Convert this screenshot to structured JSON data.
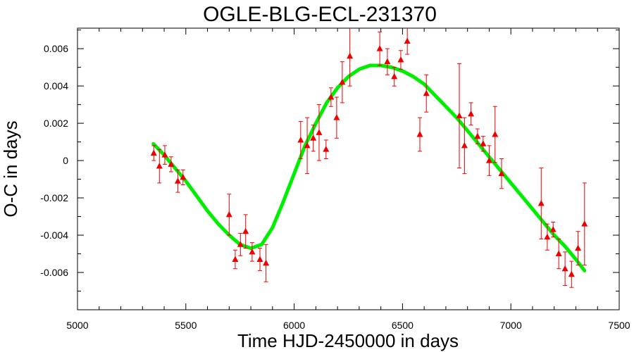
{
  "chart_data": {
    "type": "scatter",
    "title": "OGLE-BLG-ECL-231370",
    "xlabel": "Time HJD-2450000 in days",
    "ylabel": "O-C in days",
    "xlim": [
      5000,
      7500
    ],
    "ylim": [
      -0.008,
      0.0071
    ],
    "xticks": [
      5000,
      5500,
      6000,
      6500,
      7000,
      7500
    ],
    "yticks": [
      -0.006,
      -0.004,
      -0.002,
      0,
      0.002,
      0.004,
      0.006
    ],
    "ytick_labels": [
      "-0.006",
      "-0.004",
      "-0.002",
      "0",
      "0.002",
      "0.004",
      "0.006"
    ],
    "grid": false,
    "colors": {
      "points": "#ee0000",
      "fit": "#00ee00"
    },
    "series": [
      {
        "kind": "points_with_errorbars",
        "marker": "triangle",
        "x": [
          5352,
          5378,
          5403,
          5432,
          5463,
          5487,
          5700,
          5728,
          5752,
          5776,
          5806,
          5842,
          5870,
          6030,
          6060,
          6088,
          6115,
          6147,
          6170,
          6196,
          6222,
          6257,
          6395,
          6430,
          6462,
          6492,
          6522,
          6580,
          6610,
          6762,
          6786,
          6816,
          6846,
          6872,
          6900,
          6927,
          6957,
          7140,
          7168,
          7195,
          7221,
          7250,
          7280,
          7310,
          7340
        ],
        "y": [
          0.0004,
          -0.0003,
          0.0003,
          -0.0002,
          -0.0011,
          -0.0009,
          -0.0029,
          -0.0053,
          -0.0045,
          -0.0038,
          -0.0049,
          -0.0053,
          -0.0055,
          0.0011,
          0.0008,
          0.0012,
          0.0015,
          0.0006,
          0.0034,
          0.0023,
          0.0042,
          0.0056,
          0.006,
          0.0053,
          0.0045,
          0.0054,
          0.0064,
          0.0014,
          0.0036,
          0.0024,
          0.0008,
          0.0025,
          0.0013,
          0.0009,
          0.0,
          0.0014,
          -0.0007,
          -0.0023,
          -0.0041,
          -0.0037,
          -0.005,
          -0.0058,
          -0.0061,
          -0.0047,
          -0.0034
        ],
        "err": [
          0.0004,
          0.0009,
          0.0005,
          0.0004,
          0.0006,
          0.0004,
          0.0011,
          0.0005,
          0.0006,
          0.0009,
          0.0005,
          0.0006,
          0.001,
          0.001,
          0.0015,
          0.0007,
          0.0015,
          0.0005,
          0.0005,
          0.0011,
          0.0011,
          0.0016,
          0.0009,
          0.0007,
          0.0005,
          0.0005,
          0.0007,
          0.0009,
          0.001,
          0.0028,
          0.0015,
          0.0006,
          0.0004,
          0.0004,
          0.0008,
          0.0015,
          0.0008,
          0.0019,
          0.0007,
          0.0004,
          0.0008,
          0.0009,
          0.0007,
          0.0009,
          0.0022
        ]
      },
      {
        "kind": "fit_curve",
        "x": [
          5350,
          5400,
          5450,
          5500,
          5550,
          5600,
          5650,
          5700,
          5750,
          5800,
          5850,
          5900,
          5950,
          6000,
          6050,
          6100,
          6150,
          6200,
          6250,
          6300,
          6350,
          6400,
          6450,
          6500,
          6550,
          6600,
          6650,
          6700,
          6750,
          6800,
          6850,
          6900,
          6950,
          7000,
          7050,
          7100,
          7150,
          7200,
          7250,
          7300,
          7340
        ],
        "y": [
          0.0009,
          0.0003,
          -0.0004,
          -0.0011,
          -0.0019,
          -0.0027,
          -0.0034,
          -0.004,
          -0.0045,
          -0.0047,
          -0.0045,
          -0.0036,
          -0.0022,
          -0.0007,
          0.0008,
          0.002,
          0.0031,
          0.0039,
          0.0045,
          0.0049,
          0.0051,
          0.0051,
          0.005,
          0.0048,
          0.0045,
          0.0041,
          0.0035,
          0.0029,
          0.0023,
          0.0016,
          0.0009,
          0.0002,
          -0.0005,
          -0.0012,
          -0.0019,
          -0.0026,
          -0.0033,
          -0.004,
          -0.0046,
          -0.0053,
          -0.0059
        ]
      }
    ]
  }
}
